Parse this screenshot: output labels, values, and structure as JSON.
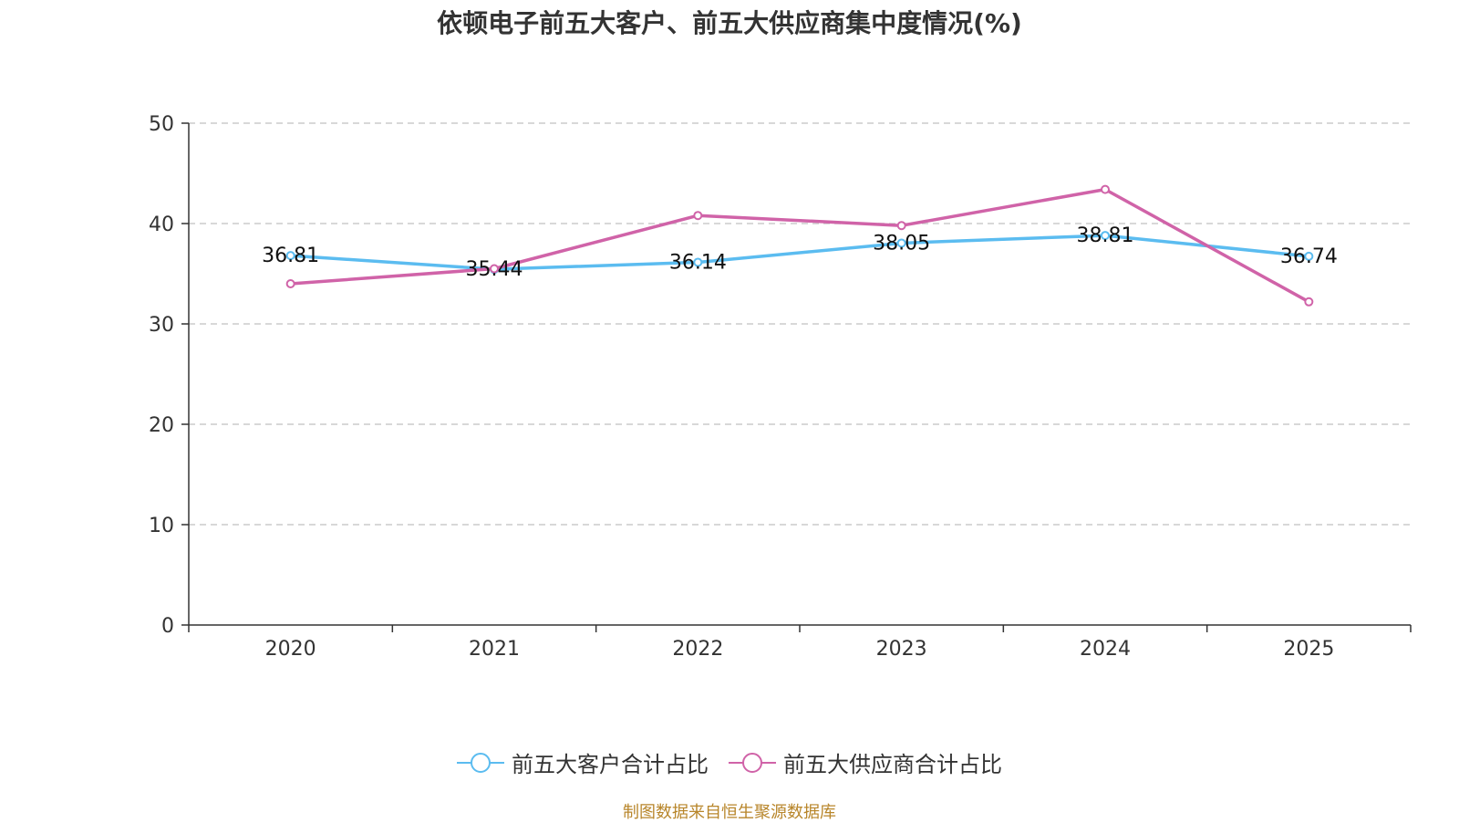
{
  "chart_data": {
    "type": "line",
    "title": "依顿电子前五大客户、前五大供应商集中度情况(%)",
    "categories": [
      "2020",
      "2021",
      "2022",
      "2023",
      "2024",
      "2025"
    ],
    "ylim": [
      0,
      50
    ],
    "yticks": [
      0,
      10,
      20,
      30,
      40,
      50
    ],
    "grid": true,
    "legend_position": "bottom",
    "series": [
      {
        "name": "前五大客户合计占比",
        "color": "#5bbcf0",
        "values": [
          36.81,
          35.44,
          36.14,
          38.05,
          38.81,
          36.74
        ],
        "labels": [
          "36.81",
          "35.44",
          "36.14",
          "38.05",
          "38.81",
          "36.74"
        ]
      },
      {
        "name": "前五大供应商合计占比",
        "color": "#d063a8",
        "values": [
          34.0,
          35.5,
          40.8,
          39.8,
          43.4,
          32.2
        ]
      }
    ]
  },
  "source": "制图数据来自恒生聚源数据库"
}
